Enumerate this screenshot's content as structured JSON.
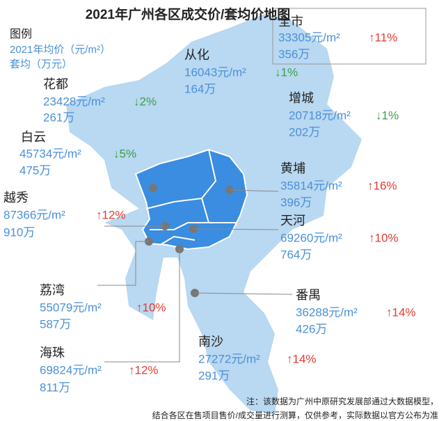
{
  "title": "2021年广州各区成交价/套均价地图",
  "legend": {
    "label": "图例",
    "price": "2021年均价（元/m²）",
    "total": "套均（万元）"
  },
  "districts": [
    {
      "name": "全市",
      "price": "33305元/m²",
      "change": "↑11%",
      "total": "356万",
      "color": "#e03c31"
    },
    {
      "name": "从化",
      "price": "16043元/m²",
      "change": "↓1%",
      "total": "164万",
      "color": "#3aa04a"
    },
    {
      "name": "花都",
      "price": "23428元/m²",
      "change": "↓2%",
      "total": "261万",
      "color": "#3aa04a"
    },
    {
      "name": "增城",
      "price": "20718元/m²",
      "change": "↓1%",
      "total": "202万",
      "color": "#3aa04a"
    },
    {
      "name": "白云",
      "price": "45734元/m²",
      "change": "↓5%",
      "total": "475万",
      "color": "#3aa04a"
    },
    {
      "name": "黄埔",
      "price": "35814元/m²",
      "change": "↑16%",
      "total": "396万",
      "color": "#e03c31"
    },
    {
      "name": "越秀",
      "price": "87366元/m²",
      "change": "↑12%",
      "total": "910万",
      "color": "#e03c31"
    },
    {
      "name": "天河",
      "price": "69260元/m²",
      "change": "↑10%",
      "total": "764万",
      "color": "#e03c31"
    },
    {
      "name": "荔湾",
      "price": "55079元/m²",
      "change": "↑10%",
      "total": "587万",
      "color": "#e03c31"
    },
    {
      "name": "番禺",
      "price": "36288元/m²",
      "change": "↑14%",
      "total": "426万",
      "color": "#e03c31"
    },
    {
      "name": "海珠",
      "price": "69824元/m²",
      "change": "↑12%",
      "total": "811万",
      "color": "#e03c31"
    },
    {
      "name": "南沙",
      "price": "27272元/m²",
      "change": "↑14%",
      "total": "291万",
      "color": "#e03c31"
    }
  ],
  "note": [
    "注：该数据为广州中原研究发展部通过大数据模型，",
    "结合各区在售项目售价/成交量进行测算，仅供参考，实际数据以官方公布为准"
  ]
}
